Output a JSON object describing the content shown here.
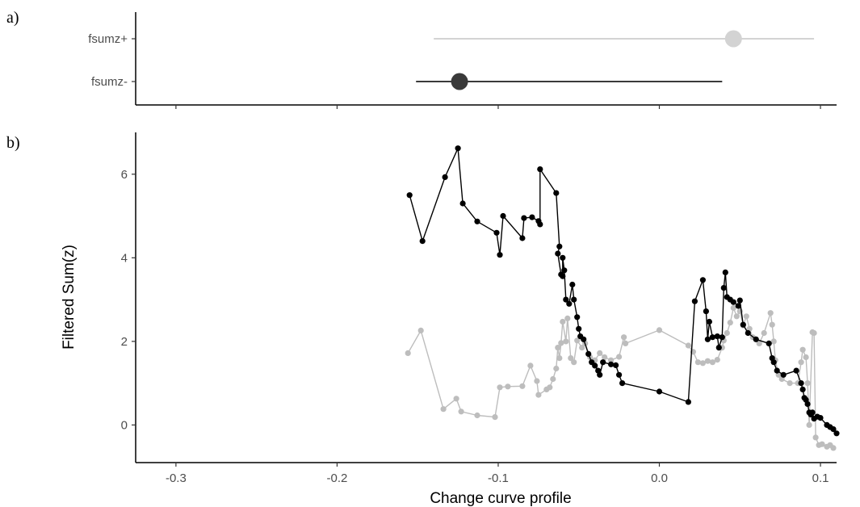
{
  "panels": {
    "a_label": "a)",
    "b_label": "b)"
  },
  "chart_data": [
    {
      "type": "scatter",
      "title": "",
      "categories": [
        "fsumz+",
        "fsumz-"
      ],
      "xlim": [
        -0.325,
        0.11
      ],
      "xticks": [
        -0.3,
        -0.2,
        -0.1,
        0.0,
        0.1
      ],
      "xlabel": "",
      "grid": false,
      "series": [
        {
          "category": "fsumz+",
          "estimate": 0.046,
          "low": -0.14,
          "high": 0.096,
          "color": "#d3d3d3"
        },
        {
          "category": "fsumz-",
          "estimate": -0.124,
          "low": -0.151,
          "high": 0.039,
          "color": "#3a3a3a"
        }
      ]
    },
    {
      "type": "line",
      "title": "",
      "xlabel": "Change curve profile",
      "ylabel": "Filtered Sum(z)",
      "xlim": [
        -0.325,
        0.11
      ],
      "ylim": [
        -0.9,
        7.0
      ],
      "xticks": [
        -0.3,
        -0.2,
        -0.1,
        0.0,
        0.1
      ],
      "xtick_labels": [
        "-0.3",
        "-0.2",
        "-0.1",
        "0.0",
        "0.1"
      ],
      "yticks": [
        0,
        2,
        4,
        6
      ],
      "ytick_labels": [
        "0",
        "2",
        "4",
        "6"
      ],
      "grid": false,
      "series": [
        {
          "color": "#000000",
          "points": [
            [
              -0.155,
              5.5
            ],
            [
              -0.147,
              4.4
            ],
            [
              -0.133,
              5.93
            ],
            [
              -0.125,
              6.62
            ],
            [
              -0.122,
              5.3
            ],
            [
              -0.113,
              4.87
            ],
            [
              -0.101,
              4.6
            ],
            [
              -0.099,
              4.07
            ],
            [
              -0.097,
              5.0
            ],
            [
              -0.085,
              4.47
            ],
            [
              -0.084,
              4.95
            ],
            [
              -0.079,
              4.97
            ],
            [
              -0.075,
              4.88
            ],
            [
              -0.074,
              4.8
            ],
            [
              -0.074,
              6.12
            ],
            [
              -0.064,
              5.55
            ],
            [
              -0.062,
              4.27
            ],
            [
              -0.063,
              4.1
            ],
            [
              -0.061,
              3.6
            ],
            [
              -0.06,
              3.56
            ],
            [
              -0.06,
              4.0
            ],
            [
              -0.059,
              3.7
            ],
            [
              -0.058,
              3.0
            ],
            [
              -0.056,
              2.9
            ],
            [
              -0.054,
              3.36
            ],
            [
              -0.053,
              3.0
            ],
            [
              -0.051,
              2.58
            ],
            [
              -0.05,
              2.3
            ],
            [
              -0.049,
              2.12
            ],
            [
              -0.047,
              2.05
            ],
            [
              -0.044,
              1.7
            ],
            [
              -0.042,
              1.5
            ],
            [
              -0.04,
              1.42
            ],
            [
              -0.038,
              1.3
            ],
            [
              -0.037,
              1.2
            ],
            [
              -0.035,
              1.5
            ],
            [
              -0.03,
              1.45
            ],
            [
              -0.027,
              1.43
            ],
            [
              -0.025,
              1.2
            ],
            [
              -0.023,
              1.0
            ],
            [
              0.0,
              0.8
            ],
            [
              0.018,
              0.55
            ],
            [
              0.022,
              2.96
            ],
            [
              0.027,
              3.47
            ],
            [
              0.029,
              2.72
            ],
            [
              0.03,
              2.05
            ],
            [
              0.031,
              2.47
            ],
            [
              0.033,
              2.1
            ],
            [
              0.036,
              2.12
            ],
            [
              0.037,
              1.85
            ],
            [
              0.039,
              2.1
            ],
            [
              0.04,
              3.28
            ],
            [
              0.041,
              3.65
            ],
            [
              0.042,
              3.06
            ],
            [
              0.044,
              3.0
            ],
            [
              0.046,
              2.94
            ],
            [
              0.049,
              2.85
            ],
            [
              0.05,
              2.98
            ],
            [
              0.052,
              2.4
            ],
            [
              0.055,
              2.2
            ],
            [
              0.06,
              2.05
            ],
            [
              0.068,
              1.95
            ],
            [
              0.07,
              1.6
            ],
            [
              0.071,
              1.5
            ],
            [
              0.073,
              1.3
            ],
            [
              0.077,
              1.2
            ],
            [
              0.085,
              1.3
            ],
            [
              0.088,
              1.0
            ],
            [
              0.089,
              0.85
            ],
            [
              0.09,
              0.65
            ],
            [
              0.091,
              0.6
            ],
            [
              0.092,
              0.5
            ],
            [
              0.093,
              0.3
            ],
            [
              0.094,
              0.25
            ],
            [
              0.095,
              0.3
            ],
            [
              0.096,
              0.15
            ],
            [
              0.098,
              0.2
            ],
            [
              0.1,
              0.17
            ],
            [
              0.104,
              0.0
            ],
            [
              0.106,
              -0.05
            ],
            [
              0.108,
              -0.1
            ],
            [
              0.11,
              -0.2
            ]
          ]
        },
        {
          "color": "#bdbdbd",
          "points": [
            [
              -0.156,
              1.72
            ],
            [
              -0.148,
              2.26
            ],
            [
              -0.134,
              0.38
            ],
            [
              -0.126,
              0.63
            ],
            [
              -0.123,
              0.32
            ],
            [
              -0.113,
              0.23
            ],
            [
              -0.102,
              0.19
            ],
            [
              -0.099,
              0.9
            ],
            [
              -0.094,
              0.92
            ],
            [
              -0.085,
              0.93
            ],
            [
              -0.08,
              1.42
            ],
            [
              -0.076,
              1.05
            ],
            [
              -0.075,
              0.72
            ],
            [
              -0.07,
              0.85
            ],
            [
              -0.068,
              0.9
            ],
            [
              -0.066,
              1.1
            ],
            [
              -0.064,
              1.35
            ],
            [
              -0.063,
              1.85
            ],
            [
              -0.062,
              1.6
            ],
            [
              -0.061,
              1.96
            ],
            [
              -0.06,
              2.47
            ],
            [
              -0.058,
              2.0
            ],
            [
              -0.057,
              2.55
            ],
            [
              -0.055,
              1.6
            ],
            [
              -0.053,
              1.5
            ],
            [
              -0.051,
              2.02
            ],
            [
              -0.048,
              1.85
            ],
            [
              -0.046,
              1.95
            ],
            [
              -0.043,
              1.62
            ],
            [
              -0.04,
              1.55
            ],
            [
              -0.037,
              1.72
            ],
            [
              -0.034,
              1.62
            ],
            [
              -0.03,
              1.55
            ],
            [
              -0.025,
              1.63
            ],
            [
              -0.022,
              2.1
            ],
            [
              -0.021,
              1.95
            ],
            [
              0.0,
              2.27
            ],
            [
              0.018,
              1.9
            ],
            [
              0.021,
              1.75
            ],
            [
              0.024,
              1.5
            ],
            [
              0.027,
              1.48
            ],
            [
              0.03,
              1.53
            ],
            [
              0.033,
              1.5
            ],
            [
              0.036,
              1.56
            ],
            [
              0.039,
              1.85
            ],
            [
              0.04,
              2.02
            ],
            [
              0.042,
              2.2
            ],
            [
              0.044,
              2.45
            ],
            [
              0.046,
              2.8
            ],
            [
              0.048,
              2.6
            ],
            [
              0.05,
              2.72
            ],
            [
              0.052,
              2.38
            ],
            [
              0.054,
              2.6
            ],
            [
              0.056,
              2.3
            ],
            [
              0.058,
              2.1
            ],
            [
              0.062,
              1.95
            ],
            [
              0.065,
              2.2
            ],
            [
              0.069,
              2.68
            ],
            [
              0.07,
              2.4
            ],
            [
              0.071,
              2.0
            ],
            [
              0.072,
              1.55
            ],
            [
              0.074,
              1.2
            ],
            [
              0.076,
              1.1
            ],
            [
              0.081,
              1.0
            ],
            [
              0.086,
              1.0
            ],
            [
              0.088,
              1.5
            ],
            [
              0.089,
              1.8
            ],
            [
              0.091,
              1.62
            ],
            [
              0.092,
              1.0
            ],
            [
              0.093,
              0.0
            ],
            [
              0.095,
              2.22
            ],
            [
              0.096,
              2.2
            ],
            [
              0.097,
              -0.3
            ],
            [
              0.099,
              -0.48
            ],
            [
              0.101,
              -0.46
            ],
            [
              0.104,
              -0.52
            ],
            [
              0.106,
              -0.48
            ],
            [
              0.108,
              -0.55
            ]
          ]
        }
      ]
    }
  ]
}
